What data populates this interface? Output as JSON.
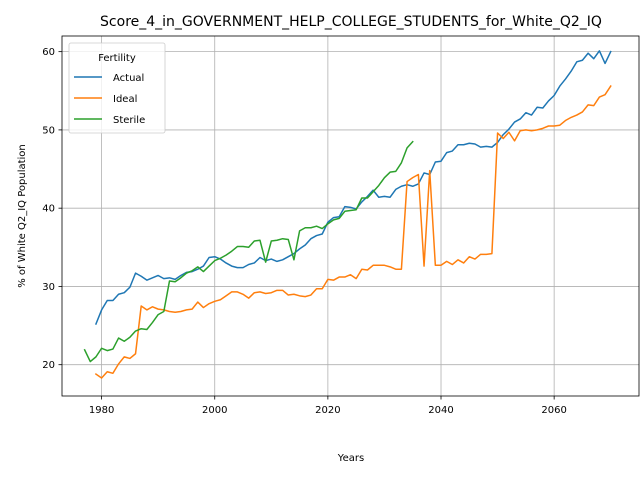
{
  "chart_data": {
    "type": "line",
    "title": "Score_4_in_GOVERNMENT_HELP_COLLEGE_STUDENTS_for_White_Q2_IQ",
    "xlabel": "Years",
    "ylabel": "% of White Q2_IQ Population",
    "xlim": [
      1973,
      2075
    ],
    "ylim": [
      16,
      62
    ],
    "xticks": [
      1980,
      2000,
      2020,
      2040,
      2060
    ],
    "yticks": [
      20,
      30,
      40,
      50,
      60
    ],
    "xtick_labels": [
      "1980",
      "2000",
      "2020",
      "2040",
      "2060"
    ],
    "ytick_labels": [
      "20",
      "30",
      "40",
      "50",
      "60"
    ],
    "grid": true,
    "legend": {
      "title": "Fertility",
      "placement": "upper-left"
    },
    "series": [
      {
        "name": "Actual",
        "color": "#1f77b4",
        "x": [
          1979,
          1980,
          1981,
          1982,
          1983,
          1984,
          1985,
          1986,
          1987,
          1988,
          1989,
          1990,
          1991,
          1992,
          1993,
          1994,
          1995,
          1996,
          1997,
          1998,
          1999,
          2000,
          2001,
          2002,
          2003,
          2004,
          2005,
          2006,
          2007,
          2008,
          2009,
          2010,
          2011,
          2012,
          2013,
          2014,
          2015,
          2016,
          2017,
          2018,
          2019,
          2020,
          2021,
          2022,
          2023,
          2024,
          2025,
          2026,
          2027,
          2028,
          2029,
          2030,
          2031,
          2032,
          2033,
          2034,
          2035,
          2036,
          2037,
          2038,
          2039,
          2040,
          2041,
          2042,
          2043,
          2044,
          2045,
          2046,
          2047,
          2048,
          2049,
          2050,
          2051,
          2052,
          2053,
          2054,
          2055,
          2056,
          2057,
          2058,
          2059,
          2060,
          2061,
          2062,
          2063,
          2064,
          2065,
          2066,
          2067,
          2068,
          2069,
          2070
        ],
        "y": [
          25.2,
          27.0,
          28.2,
          28.2,
          29.0,
          29.2,
          29.9,
          31.7,
          31.3,
          30.8,
          31.1,
          31.4,
          31.0,
          31.1,
          30.9,
          31.4,
          31.8,
          31.9,
          32.2,
          32.6,
          33.7,
          33.8,
          33.5,
          33.0,
          32.6,
          32.4,
          32.4,
          32.8,
          33.0,
          33.7,
          33.3,
          33.5,
          33.2,
          33.4,
          33.8,
          34.2,
          34.8,
          35.3,
          36.1,
          36.5,
          36.7,
          38.2,
          38.8,
          38.9,
          40.2,
          40.1,
          39.9,
          40.8,
          41.5,
          42.3,
          41.4,
          41.5,
          41.4,
          42.4,
          42.8,
          43.0,
          42.8,
          43.1,
          44.5,
          44.3,
          45.9,
          46.0,
          47.1,
          47.3,
          48.1,
          48.1,
          48.3,
          48.2,
          47.8,
          47.9,
          47.8,
          48.4,
          49.4,
          50.1,
          51.0,
          51.4,
          52.2,
          51.9,
          52.9,
          52.8,
          53.7,
          54.4,
          55.6,
          56.5,
          57.5,
          58.7,
          58.9,
          59.8,
          59.1,
          60.1,
          58.5,
          60.0
        ]
      },
      {
        "name": "Ideal",
        "color": "#ff7f0e",
        "x": [
          1979,
          1980,
          1981,
          1982,
          1983,
          1984,
          1985,
          1986,
          1987,
          1988,
          1989,
          1990,
          1991,
          1992,
          1993,
          1994,
          1995,
          1996,
          1997,
          1998,
          1999,
          2000,
          2001,
          2002,
          2003,
          2004,
          2005,
          2006,
          2007,
          2008,
          2009,
          2010,
          2011,
          2012,
          2013,
          2014,
          2015,
          2016,
          2017,
          2018,
          2019,
          2020,
          2021,
          2022,
          2023,
          2024,
          2025,
          2026,
          2027,
          2028,
          2029,
          2030,
          2031,
          2032,
          2033,
          2034,
          2035,
          2036,
          2037,
          2038,
          2039,
          2040,
          2041,
          2042,
          2043,
          2044,
          2045,
          2046,
          2047,
          2048,
          2049,
          2050,
          2051,
          2052,
          2053,
          2054,
          2055,
          2056,
          2057,
          2058,
          2059,
          2060,
          2061,
          2062,
          2063,
          2064,
          2065,
          2066,
          2067,
          2068,
          2069,
          2070
        ],
        "y": [
          18.8,
          18.3,
          19.1,
          18.9,
          20.1,
          21.0,
          20.8,
          21.4,
          27.5,
          27.0,
          27.4,
          27.1,
          27.0,
          26.8,
          26.7,
          26.8,
          27.0,
          27.1,
          28.0,
          27.3,
          27.8,
          28.1,
          28.3,
          28.8,
          29.3,
          29.3,
          29.0,
          28.5,
          29.2,
          29.3,
          29.1,
          29.2,
          29.5,
          29.5,
          28.9,
          29.0,
          28.8,
          28.7,
          28.9,
          29.7,
          29.7,
          30.9,
          30.8,
          31.2,
          31.2,
          31.5,
          31.0,
          32.2,
          32.1,
          32.7,
          32.7,
          32.7,
          32.5,
          32.2,
          32.2,
          43.4,
          43.9,
          44.3,
          32.6,
          44.8,
          32.7,
          32.7,
          33.2,
          32.8,
          33.4,
          33.0,
          33.8,
          33.5,
          34.1,
          34.1,
          34.2,
          49.6,
          48.9,
          49.7,
          48.6,
          49.9,
          50.0,
          49.9,
          50.0,
          50.2,
          50.5,
          50.5,
          50.6,
          51.2,
          51.6,
          51.9,
          52.3,
          53.2,
          53.1,
          54.2,
          54.5,
          55.6
        ]
      },
      {
        "name": "Sterile",
        "color": "#2ca02c",
        "x": [
          1977,
          1978,
          1979,
          1980,
          1981,
          1982,
          1983,
          1984,
          1985,
          1986,
          1987,
          1988,
          1989,
          1990,
          1991,
          1992,
          1993,
          1994,
          1995,
          1996,
          1997,
          1998,
          1999,
          2000,
          2001,
          2002,
          2003,
          2004,
          2005,
          2006,
          2007,
          2008,
          2009,
          2010,
          2011,
          2012,
          2013,
          2014,
          2015,
          2016,
          2017,
          2018,
          2019,
          2020,
          2021,
          2022,
          2023,
          2024,
          2025,
          2026,
          2027,
          2028,
          2029,
          2030,
          2031,
          2032,
          2033,
          2034,
          2035
        ],
        "y": [
          21.9,
          20.4,
          21.0,
          22.1,
          21.8,
          22.0,
          23.4,
          23.0,
          23.5,
          24.3,
          24.6,
          24.5,
          25.4,
          26.4,
          26.8,
          30.7,
          30.6,
          31.1,
          31.7,
          32.0,
          32.5,
          31.9,
          32.6,
          33.3,
          33.6,
          34.0,
          34.5,
          35.1,
          35.1,
          35.0,
          35.8,
          35.9,
          33.1,
          35.8,
          35.9,
          36.1,
          36.0,
          33.4,
          37.1,
          37.5,
          37.5,
          37.7,
          37.4,
          38.0,
          38.5,
          38.7,
          39.6,
          39.7,
          39.8,
          41.3,
          41.3,
          42.1,
          42.9,
          43.9,
          44.6,
          44.7,
          45.8,
          47.7,
          48.5
        ]
      }
    ]
  }
}
